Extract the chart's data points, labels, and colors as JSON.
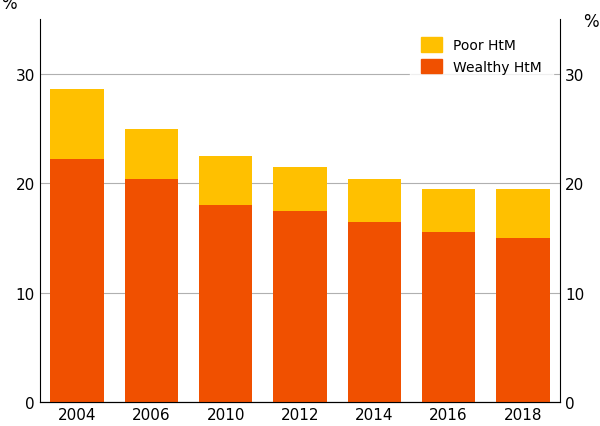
{
  "years": [
    "2004",
    "2006",
    "2010",
    "2012",
    "2014",
    "2016",
    "2018"
  ],
  "wealthy_htm": [
    22.2,
    20.4,
    18.0,
    17.5,
    16.5,
    15.5,
    15.0
  ],
  "poor_htm": [
    6.4,
    4.6,
    4.5,
    4.0,
    3.9,
    4.0,
    4.5
  ],
  "wealthy_color": "#f05000",
  "poor_color": "#ffc000",
  "ylim": [
    0,
    35
  ],
  "yticks": [
    0,
    10,
    20,
    30
  ],
  "bar_width": 0.72,
  "legend_labels": [
    "Poor HtM",
    "Wealthy HtM"
  ],
  "background_color": "#ffffff",
  "grid_color": "#b0b0b0",
  "ylabel_left": "%",
  "ylabel_right": "%"
}
